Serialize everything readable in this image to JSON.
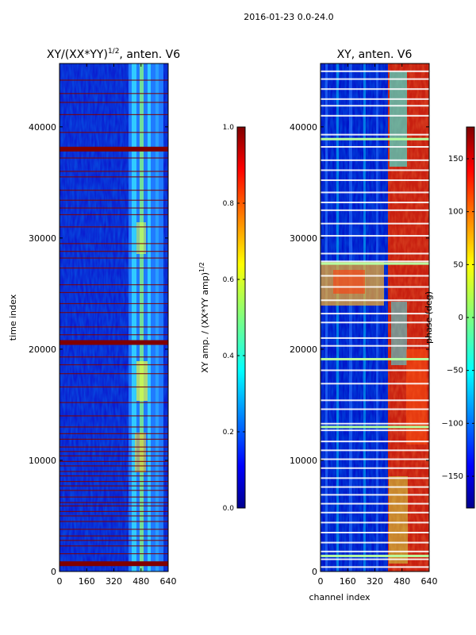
{
  "figure_title": "2016-01-23 0.0-24.0",
  "colors": {
    "jet_dark_blue": "#00008f",
    "jet_blue": "#0000ff",
    "jet_cyan": "#00ffff",
    "jet_yellow": "#ffff00",
    "jet_red": "#ff0000",
    "jet_dark_red": "#800000"
  },
  "chart_data": [
    {
      "type": "heatmap",
      "title_main": "XY/(XX*YY)",
      "title_superscript": "1/2",
      "title_suffix": ", anten. V6",
      "xlabel": "",
      "ylabel": "time index",
      "xlim": [
        0,
        640
      ],
      "ylim": [
        0,
        45700
      ],
      "xticks": [
        0,
        160,
        320,
        480,
        640
      ],
      "xtick_labels": [
        "0",
        "160",
        "320",
        "480",
        "640"
      ],
      "yticks": [
        0,
        10000,
        20000,
        30000,
        40000
      ],
      "ytick_labels": [
        "0",
        "10000",
        "20000",
        "30000",
        "40000"
      ],
      "colorscale": "jet",
      "colorbar": {
        "label_main": "XY amp. / (XX*YY amp)",
        "label_superscript": "1/2",
        "range": [
          0.0,
          1.0
        ],
        "ticks": [
          0.0,
          0.2,
          0.4,
          0.6,
          0.8,
          1.0
        ],
        "tick_labels": [
          "0.0",
          "0.2",
          "0.4",
          "0.6",
          "0.8",
          "1.0"
        ]
      },
      "value_summary": {
        "background": 0.12,
        "channel_band_start": 410,
        "band_value": 0.42,
        "flag_value": 1.0
      },
      "flagged_rows_thick": [
        38000,
        20600,
        700
      ],
      "flagged_rows_thin": [
        44200,
        43000,
        42200,
        41100,
        39500,
        37200,
        36000,
        35500,
        34300,
        33400,
        32700,
        32100,
        31000,
        29500,
        28800,
        28200,
        27300,
        25800,
        25100,
        24100,
        23300,
        22000,
        21300,
        19300,
        18600,
        17800,
        16600,
        15200,
        14000,
        13000,
        12400,
        11900,
        11200,
        10800,
        10400,
        9900,
        9500,
        9000,
        8600,
        8100,
        7700,
        7300,
        6700,
        6200,
        5900,
        5400,
        5000,
        4500,
        3800,
        3200,
        2800,
        2300,
        1600
      ]
    },
    {
      "type": "heatmap",
      "title": "XY, anten. V6",
      "xlabel": "channel index",
      "ylabel": "",
      "xlim": [
        0,
        640
      ],
      "ylim": [
        0,
        45700
      ],
      "xticks": [
        0,
        160,
        320,
        480,
        640
      ],
      "xtick_labels": [
        "0",
        "160",
        "320",
        "480",
        "640"
      ],
      "yticks": [
        0,
        10000,
        20000,
        30000,
        40000
      ],
      "ytick_labels": [
        "0",
        "10000",
        "20000",
        "30000",
        "40000"
      ],
      "colorscale": "jet",
      "colorbar": {
        "label_main": "phase (deg)",
        "range": [
          -180,
          180
        ],
        "ticks": [
          -150,
          -100,
          -50,
          0,
          50,
          100,
          150
        ],
        "tick_labels": [
          "−150",
          "−100",
          "−50",
          "0",
          "50",
          "100",
          "150"
        ]
      },
      "value_summary": {
        "background": -165,
        "channel_band_start": 410,
        "band_value_low": -20,
        "band_value_high": 160
      },
      "white_rows": [
        45000,
        44300,
        43400,
        42500,
        41900,
        41000,
        39300,
        38200,
        37000,
        36100,
        35200,
        34100,
        33200,
        32500,
        31300,
        30200,
        28600,
        27900,
        26600,
        25600,
        24400,
        23200,
        22400,
        21000,
        20300,
        18100,
        16900,
        15400,
        14600,
        13300,
        12700,
        11700,
        10900,
        10100,
        9300,
        8400,
        7600,
        6900,
        6100,
        5300,
        4400,
        3500,
        2600,
        1800,
        1100,
        400
      ],
      "green_rows": [
        38900,
        27700,
        19100,
        13000,
        1400
      ]
    }
  ]
}
